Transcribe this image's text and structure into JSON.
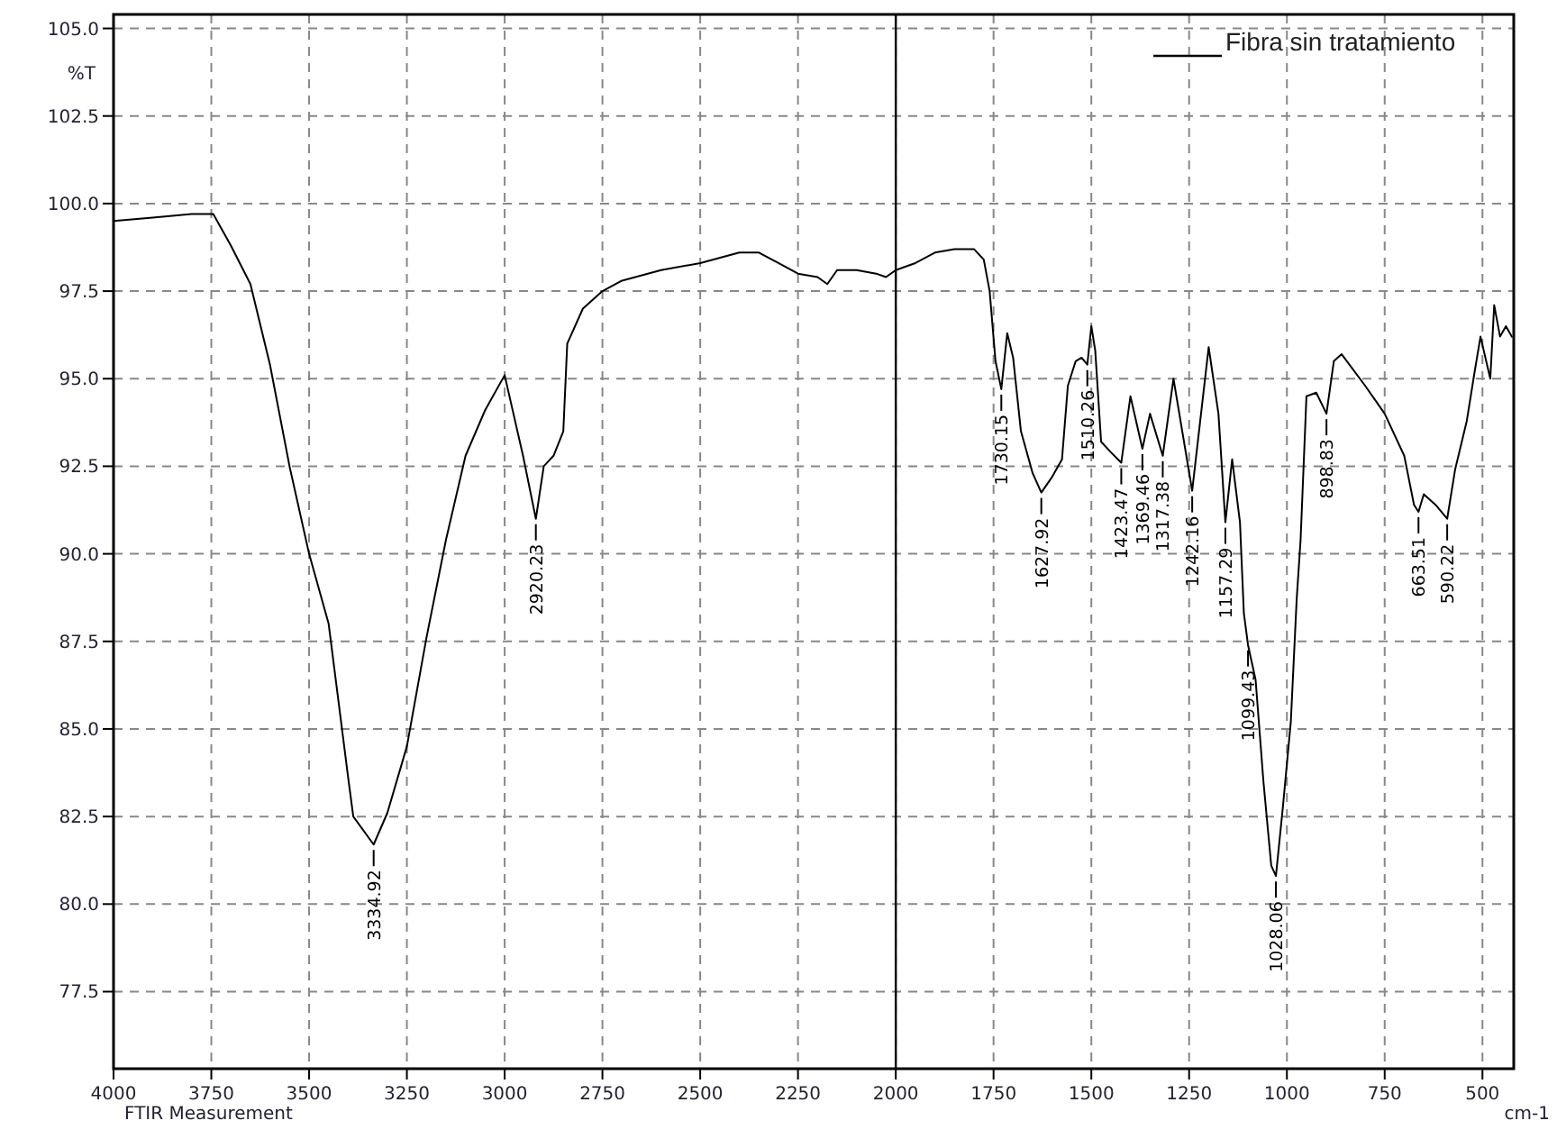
{
  "chart_data": {
    "type": "line",
    "xlabel": "cm-1",
    "ylabel": "%T",
    "xlim": [
      4000,
      420
    ],
    "ylim": [
      75.3,
      105.4
    ],
    "xticks": [
      4000,
      3750,
      3500,
      3250,
      3000,
      2750,
      2500,
      2250,
      2000,
      1750,
      1500,
      1250,
      1000,
      750,
      500
    ],
    "yticks": [
      {
        "value": 77.5,
        "label": "77.5"
      },
      {
        "value": 80,
        "label": "80.0"
      },
      {
        "value": 82.5,
        "label": "82.5"
      },
      {
        "value": 85,
        "label": "85.0"
      },
      {
        "value": 87.5,
        "label": "87.5"
      },
      {
        "value": 90,
        "label": "90.0"
      },
      {
        "value": 92.5,
        "label": "92.5"
      },
      {
        "value": 95,
        "label": "95.0"
      },
      {
        "value": 97.5,
        "label": "97.5"
      },
      {
        "value": 100,
        "label": "100.0"
      },
      {
        "value": 102.5,
        "label": "102.5"
      },
      {
        "value": 105,
        "label": "105.0"
      }
    ],
    "grid": true,
    "legend": "top right",
    "line_style": "solid",
    "ref_lines": [
      {
        "axis": "x",
        "value": 2000,
        "color": "#000000"
      }
    ],
    "series": [
      {
        "name": "Fibra sin tratamiento",
        "color": "#000000",
        "x": [
          4000,
          3900,
          3800,
          3745,
          3700,
          3650,
          3600,
          3550,
          3500,
          3450,
          3400,
          3387,
          3334.92,
          3300,
          3250,
          3200,
          3150,
          3100,
          3050,
          3000,
          2953,
          2920.23,
          2900,
          2875,
          2850,
          2840,
          2800,
          2750,
          2700,
          2600,
          2500,
          2400,
          2350,
          2300,
          2250,
          2200,
          2175,
          2150,
          2100,
          2050,
          2025,
          2000,
          1950,
          1900,
          1850,
          1800,
          1775,
          1760,
          1745,
          1730.15,
          1715,
          1700,
          1680,
          1650,
          1627.92,
          1600,
          1575,
          1560,
          1540,
          1525,
          1510.26,
          1500,
          1490,
          1475,
          1450,
          1423.47,
          1400,
          1369.46,
          1350,
          1317.38,
          1290,
          1242.16,
          1200,
          1175,
          1157.29,
          1140,
          1120,
          1110,
          1099.43,
          1080,
          1060,
          1040,
          1028.06,
          1010,
          990,
          975,
          965,
          950,
          925,
          898.83,
          880,
          860,
          800,
          750,
          700,
          675,
          663.51,
          650,
          620,
          590.22,
          570,
          540,
          520,
          505,
          480,
          470,
          455,
          440,
          425
        ],
        "values": [
          99.5,
          99.6,
          99.7,
          99.7,
          98.8,
          97.7,
          95.4,
          92.5,
          90.0,
          88.0,
          83.6,
          82.5,
          81.7,
          82.6,
          84.5,
          87.6,
          90.4,
          92.8,
          94.1,
          95.1,
          92.8,
          91.0,
          92.5,
          92.8,
          93.5,
          96.0,
          97.0,
          97.5,
          97.8,
          98.1,
          98.3,
          98.6,
          98.6,
          98.3,
          98.0,
          97.9,
          97.7,
          98.1,
          98.1,
          98.0,
          97.9,
          98.1,
          98.3,
          98.6,
          98.7,
          98.7,
          98.4,
          97.5,
          95.5,
          94.7,
          96.3,
          95.6,
          93.5,
          92.3,
          91.75,
          92.2,
          92.7,
          94.8,
          95.5,
          95.6,
          95.4,
          96.5,
          95.8,
          93.2,
          92.9,
          92.6,
          94.5,
          93.0,
          94.0,
          92.8,
          95.0,
          91.8,
          95.9,
          94.0,
          90.9,
          92.7,
          90.9,
          88.3,
          87.4,
          86.4,
          83.5,
          81.1,
          80.8,
          82.8,
          85.2,
          88.7,
          90.4,
          94.5,
          94.6,
          94.0,
          95.5,
          95.7,
          94.8,
          94.0,
          92.8,
          91.4,
          91.2,
          91.7,
          91.4,
          91.0,
          92.4,
          93.8,
          95.2,
          96.2,
          95.0,
          97.1,
          96.2,
          96.5,
          96.2
        ]
      }
    ],
    "annotations": [
      {
        "text": "3334.92",
        "x": 3334.92,
        "y": 81.7
      },
      {
        "text": "2920.23",
        "x": 2920.23,
        "y": 91.0
      },
      {
        "text": "1730.15",
        "x": 1730.15,
        "y": 94.7
      },
      {
        "text": "1627.92",
        "x": 1627.92,
        "y": 91.75
      },
      {
        "text": "1510.26",
        "x": 1510.26,
        "y": 95.4
      },
      {
        "text": "1423.47",
        "x": 1423.47,
        "y": 92.6
      },
      {
        "text": "1369.46",
        "x": 1369.46,
        "y": 93.0
      },
      {
        "text": "1317.38",
        "x": 1317.38,
        "y": 92.8
      },
      {
        "text": "1242.16",
        "x": 1242.16,
        "y": 91.8
      },
      {
        "text": "1157.29",
        "x": 1157.29,
        "y": 90.9
      },
      {
        "text": "1099.43",
        "x": 1099.43,
        "y": 87.4
      },
      {
        "text": "1028.06",
        "x": 1028.06,
        "y": 80.8
      },
      {
        "text": "898.83",
        "x": 898.83,
        "y": 94.0
      },
      {
        "text": "663.51",
        "x": 663.51,
        "y": 91.2
      },
      {
        "text": "590.22",
        "x": 590.22,
        "y": 91.0
      },
      "FTIR Measurement"
    ]
  }
}
